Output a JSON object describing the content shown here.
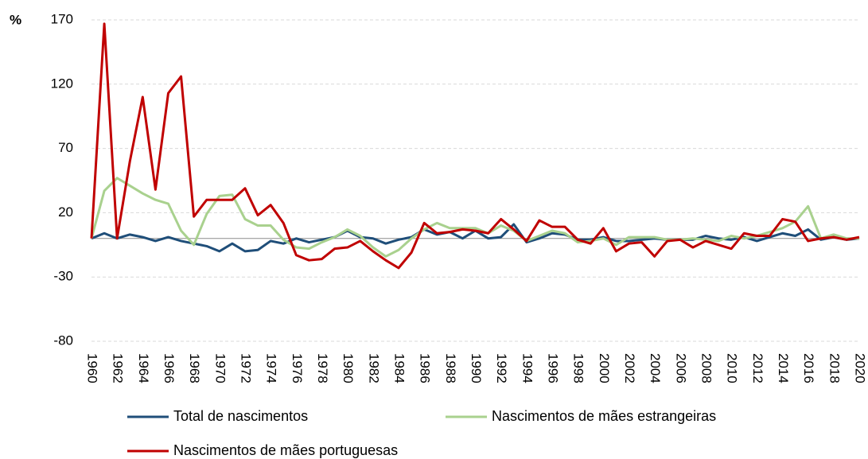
{
  "chart_data": {
    "type": "line",
    "y_label": "%",
    "x": [
      1960,
      1961,
      1962,
      1963,
      1964,
      1965,
      1966,
      1967,
      1968,
      1969,
      1970,
      1971,
      1972,
      1973,
      1974,
      1975,
      1976,
      1977,
      1978,
      1979,
      1980,
      1981,
      1982,
      1983,
      1984,
      1985,
      1986,
      1987,
      1988,
      1989,
      1990,
      1991,
      1992,
      1993,
      1994,
      1995,
      1996,
      1997,
      1998,
      1999,
      2000,
      2001,
      2002,
      2003,
      2004,
      2005,
      2006,
      2007,
      2008,
      2009,
      2010,
      2011,
      2012,
      2013,
      2014,
      2015,
      2016,
      2017,
      2018,
      2019,
      2020
    ],
    "xlim": [
      1960,
      2020
    ],
    "xticks": [
      1960,
      1962,
      1964,
      1966,
      1968,
      1970,
      1972,
      1974,
      1976,
      1978,
      1980,
      1982,
      1984,
      1986,
      1988,
      1990,
      1992,
      1994,
      1996,
      1998,
      2000,
      2002,
      2004,
      2006,
      2008,
      2010,
      2012,
      2014,
      2016,
      2018,
      2020
    ],
    "ylim": [
      -80,
      170
    ],
    "yticks": [
      -80,
      -30,
      20,
      70,
      120,
      170
    ],
    "grid": true,
    "series": [
      {
        "name": "Total de nascimentos",
        "color": "#1f4e79",
        "values": [
          0,
          4,
          0,
          3,
          1,
          -2,
          1,
          -2,
          -4,
          -6,
          -10,
          -4,
          -10,
          -9,
          -2,
          -4,
          0,
          -3,
          -1,
          1,
          6,
          1,
          0,
          -4,
          -1,
          1,
          7,
          3,
          5,
          0,
          6,
          0,
          1,
          11,
          -3,
          0,
          4,
          3,
          -1,
          -1,
          1,
          -2,
          -2,
          -1,
          0,
          -1,
          -1,
          -1,
          2,
          0,
          -1,
          1,
          -2,
          1,
          4,
          2,
          7,
          -1,
          1,
          -1,
          0
        ]
      },
      {
        "name": "Nascimentos de mães estrangeiras",
        "color": "#a9d18e",
        "values": [
          0,
          37,
          47,
          41,
          35,
          30,
          27,
          6,
          -5,
          19,
          33,
          34,
          15,
          10,
          10,
          -1,
          -7,
          -8,
          -3,
          1,
          7,
          2,
          -7,
          -14,
          -9,
          0,
          7,
          12,
          8,
          8,
          8,
          4,
          10,
          6,
          -2,
          2,
          6,
          4,
          -3,
          -2,
          0,
          -5,
          1,
          1,
          1,
          -1,
          -1,
          0,
          -1,
          -2,
          2,
          0,
          2,
          5,
          8,
          13,
          25,
          0,
          3,
          0,
          0
        ]
      },
      {
        "name": "Nascimentos de mães portuguesas",
        "color": "#c00000",
        "values": [
          0,
          167,
          0,
          60,
          110,
          38,
          113,
          126,
          17,
          30,
          30,
          30,
          39,
          18,
          26,
          12,
          -13,
          -17,
          -16,
          -8,
          -7,
          -2,
          -10,
          -17,
          -23,
          -11,
          12,
          4,
          5,
          7,
          6,
          4,
          15,
          7,
          -2,
          14,
          9,
          9,
          -1,
          -4,
          8,
          -10,
          -4,
          -3,
          -14,
          -2,
          -1,
          -7,
          -2,
          -5,
          -8,
          4,
          2,
          2,
          15,
          13,
          -2,
          0,
          1,
          -1,
          1
        ]
      }
    ]
  }
}
